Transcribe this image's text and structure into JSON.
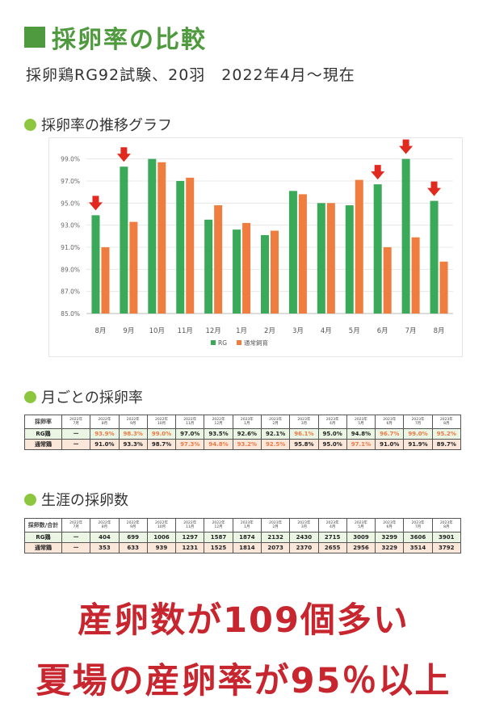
{
  "header": {
    "title": "採卵率の比較",
    "subtitle": "採卵鶏RG92試験、20羽　2022年4月～現在"
  },
  "sections": {
    "chart_heading": "採卵率の推移グラフ",
    "monthly_heading": "月ごとの採卵率",
    "lifetime_heading": "生涯の採卵数"
  },
  "colors": {
    "rg": "#3aaa5a",
    "normal": "#ef7d3f",
    "arrow": "#e02a1f",
    "heading_green": "#4f9a3e",
    "headline_red": "#c8262f"
  },
  "chart_data": {
    "type": "bar",
    "categories": [
      "8月",
      "9月",
      "10月",
      "11月",
      "12月",
      "1月",
      "2月",
      "3月",
      "4月",
      "5月",
      "6月",
      "7月",
      "8月"
    ],
    "series": [
      {
        "name": "RG",
        "values": [
          93.9,
          98.3,
          99.0,
          97.0,
          93.5,
          92.6,
          92.1,
          96.1,
          95.0,
          94.8,
          96.7,
          99.0,
          95.2
        ]
      },
      {
        "name": "通常飼育",
        "values": [
          91.0,
          93.3,
          98.7,
          97.3,
          94.8,
          93.2,
          92.5,
          95.8,
          95.0,
          97.1,
          91.0,
          91.9,
          89.7
        ]
      }
    ],
    "ylim": [
      85,
      100
    ],
    "yticks": [
      "85.0%",
      "87.0%",
      "89.0%",
      "91.0%",
      "93.0%",
      "95.0%",
      "97.0%",
      "99.0%"
    ],
    "ytick_values": [
      85,
      87,
      89,
      91,
      93,
      95,
      97,
      99
    ],
    "arrow_categories": [
      0,
      1,
      10,
      11,
      12
    ],
    "legend": "bottom-center",
    "grid": true
  },
  "monthly_table": {
    "headers": [
      "採卵率",
      "2022年\n7月",
      "2022年\n8月",
      "2022年\n9月",
      "2022年\n10月",
      "2022年\n11月",
      "2022年\n12月",
      "2023年\n1月",
      "2023年\n2月",
      "2023年\n3月",
      "2023年\n4月",
      "2023年\n5月",
      "2023年\n6月",
      "2023年\n7月",
      "2023年\n8月"
    ],
    "rows": [
      {
        "label": "RG鶏",
        "cells": [
          "ー",
          "93.9%",
          "98.3%",
          "99.0%",
          "97.0%",
          "93.5%",
          "92.6%",
          "92.1%",
          "96.1%",
          "95.0%",
          "94.8%",
          "96.7%",
          "99.0%",
          "95.2%"
        ]
      },
      {
        "label": "通常鶏",
        "cells": [
          "ー",
          "91.0%",
          "93.3%",
          "98.7%",
          "97.3%",
          "94.8%",
          "93.2%",
          "92.5%",
          "95.8%",
          "95.0%",
          "97.1%",
          "91.0%",
          "91.9%",
          "89.7%"
        ]
      }
    ]
  },
  "lifetime_table": {
    "headers": [
      "採卵数/合計",
      "2022年\n7月",
      "2022年\n8月",
      "2022年\n9月",
      "2022年\n10月",
      "2022年\n11月",
      "2022年\n12月",
      "2023年\n1月",
      "2023年\n2月",
      "2023年\n3月",
      "2023年\n4月",
      "2023年\n5月",
      "2023年\n6月",
      "2023年\n7月",
      "2023年\n8月"
    ],
    "rows": [
      {
        "label": "RG鶏",
        "cells": [
          "ー",
          "404",
          "699",
          "1006",
          "1297",
          "1587",
          "1874",
          "2132",
          "2430",
          "2715",
          "3009",
          "3299",
          "3606",
          "3901"
        ]
      },
      {
        "label": "通常鶏",
        "cells": [
          "ー",
          "353",
          "633",
          "939",
          "1231",
          "1525",
          "1814",
          "2073",
          "2370",
          "2655",
          "2956",
          "3229",
          "3514",
          "3792"
        ]
      }
    ]
  },
  "footer": {
    "line1": "産卵数が109個多い",
    "line2": "夏場の産卵率が95％以上"
  }
}
